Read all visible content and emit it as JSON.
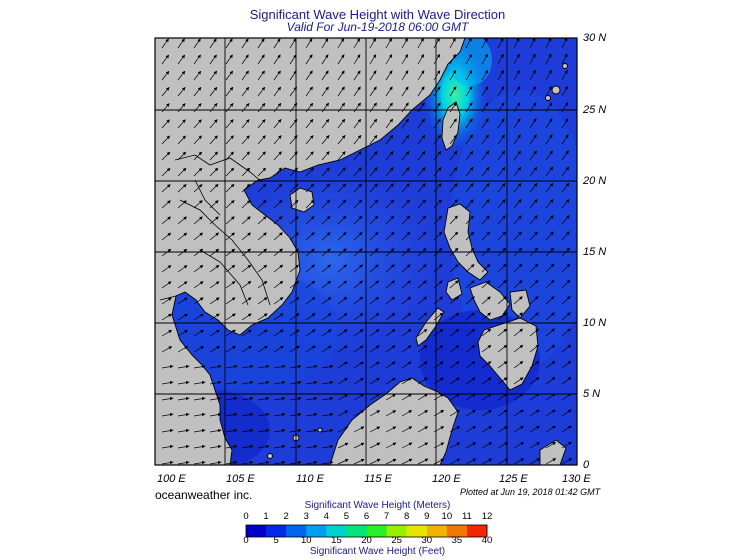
{
  "header": {
    "title": "Significant Wave Height with Wave Direction",
    "subtitle": "Valid For Jun-19-2018 06:00 GMT"
  },
  "map": {
    "lat_labels": [
      "30 N",
      "25 N",
      "20 N",
      "15 N",
      "10 N",
      "5 N",
      "0"
    ],
    "lon_labels": [
      "100 E",
      "105 E",
      "110 E",
      "115 E",
      "120 E",
      "125 E",
      "130 E"
    ],
    "land_color": "#c0c0c0",
    "ocean_color": "#1e3cd8",
    "coast_color": "#000000"
  },
  "footer": {
    "brand": "oceanweather inc.",
    "plotted": "Plotted at Jun 19, 2018 01:42 GMT"
  },
  "colorbar": {
    "title_top": "Significant Wave Height (Meters)",
    "title_bottom": "Significant Wave Height (Feet)",
    "meters": [
      "0",
      "1",
      "2",
      "3",
      "4",
      "5",
      "6",
      "7",
      "8",
      "9",
      "10",
      "11",
      "12"
    ],
    "feet": [
      "0",
      "5",
      "10",
      "15",
      "20",
      "25",
      "30",
      "35",
      "40"
    ],
    "colors": [
      "#0000c8",
      "#0028e6",
      "#0064f0",
      "#00a0f0",
      "#00d2d2",
      "#00e678",
      "#28f028",
      "#96f000",
      "#e6e600",
      "#f0b400",
      "#f07800",
      "#f02800"
    ]
  }
}
